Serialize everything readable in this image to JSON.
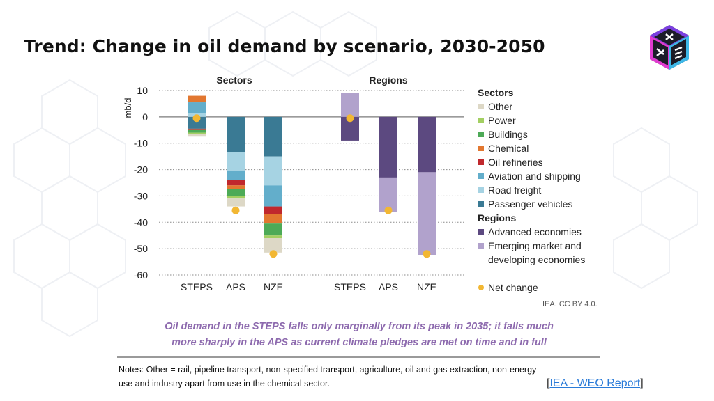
{
  "slide": {
    "title": "Trend: Change in oil demand by scenario, 2030-2050",
    "caption_line1": "Oil demand in the STEPS falls only marginally from its peak in 2035; it falls much",
    "caption_line2": "more sharply in the APS as current climate pledges are met on time and in full",
    "notes_line1": "Notes: Other = rail, pipeline transport, non-specified transport, agriculture, oil and gas extraction, non-energy",
    "notes_line2": "use and industry apart from use in the chemical sector.",
    "source_open": "[",
    "source_link": "IEA - WEO Report",
    "source_close": "]",
    "credit": "IEA. CC BY 4.0."
  },
  "chart_data": {
    "type": "bar",
    "stacked": true,
    "ylabel": "mb/d",
    "ylim": [
      -60,
      10
    ],
    "yticks": [
      10,
      0,
      -10,
      -20,
      -30,
      -40,
      -50,
      -60
    ],
    "grid": "horizontal dotted",
    "legend_position": "right",
    "panels": [
      {
        "title": "Sectors",
        "categories": [
          "STEPS",
          "APS",
          "NZE"
        ],
        "series": [
          {
            "name": "Passenger vehicles",
            "color": "#3a7a94",
            "values": [
              -4.5,
              -13.5,
              -15
            ]
          },
          {
            "name": "Road freight",
            "color": "#a6d3e3",
            "values": [
              1.5,
              -7,
              -11
            ]
          },
          {
            "name": "Aviation and shipping",
            "color": "#63aecb",
            "values": [
              4,
              -3.5,
              -8
            ]
          },
          {
            "name": "Oil refineries",
            "color": "#c0282d",
            "values": [
              -0.5,
              -2,
              -3
            ]
          },
          {
            "name": "Chemical",
            "color": "#e27730",
            "values": [
              2.5,
              -1.5,
              -3.5
            ]
          },
          {
            "name": "Buildings",
            "color": "#4daa57",
            "values": [
              -1,
              -2.5,
              -4.5
            ]
          },
          {
            "name": "Power",
            "color": "#a3cf62",
            "values": [
              -0.5,
              -1,
              -1
            ]
          },
          {
            "name": "Other",
            "color": "#ddd8c6",
            "values": [
              -1,
              -3,
              -5.5
            ]
          }
        ],
        "net_change": [
          -0.5,
          -35.5,
          -52
        ]
      },
      {
        "title": "Regions",
        "categories": [
          "STEPS",
          "APS",
          "NZE"
        ],
        "series": [
          {
            "name": "Advanced economies",
            "color": "#5c4980",
            "values": [
              -9,
              -23,
              -21
            ]
          },
          {
            "name": "Emerging market and developing economies",
            "color": "#b1a2cc",
            "values": [
              9,
              -13,
              -31.5
            ]
          }
        ],
        "net_change": [
          -0.5,
          -35.5,
          -52
        ]
      }
    ],
    "net_change_color": "#f2b733",
    "legend": {
      "sectors_header": "Sectors",
      "sectors": [
        "Other",
        "Power",
        "Buildings",
        "Chemical",
        "Oil refineries",
        "Aviation and shipping",
        "Road freight",
        "Passenger vehicles"
      ],
      "sectors_colors": [
        "#ddd8c6",
        "#a3cf62",
        "#4daa57",
        "#e27730",
        "#c0282d",
        "#63aecb",
        "#a6d3e3",
        "#3a7a94"
      ],
      "regions_header": "Regions",
      "regions": [
        "Advanced economies",
        "Emerging market and",
        "developing economies"
      ],
      "regions_colors": [
        "#5c4980",
        "#b1a2cc",
        ""
      ],
      "net_change_label": "Net change"
    }
  }
}
